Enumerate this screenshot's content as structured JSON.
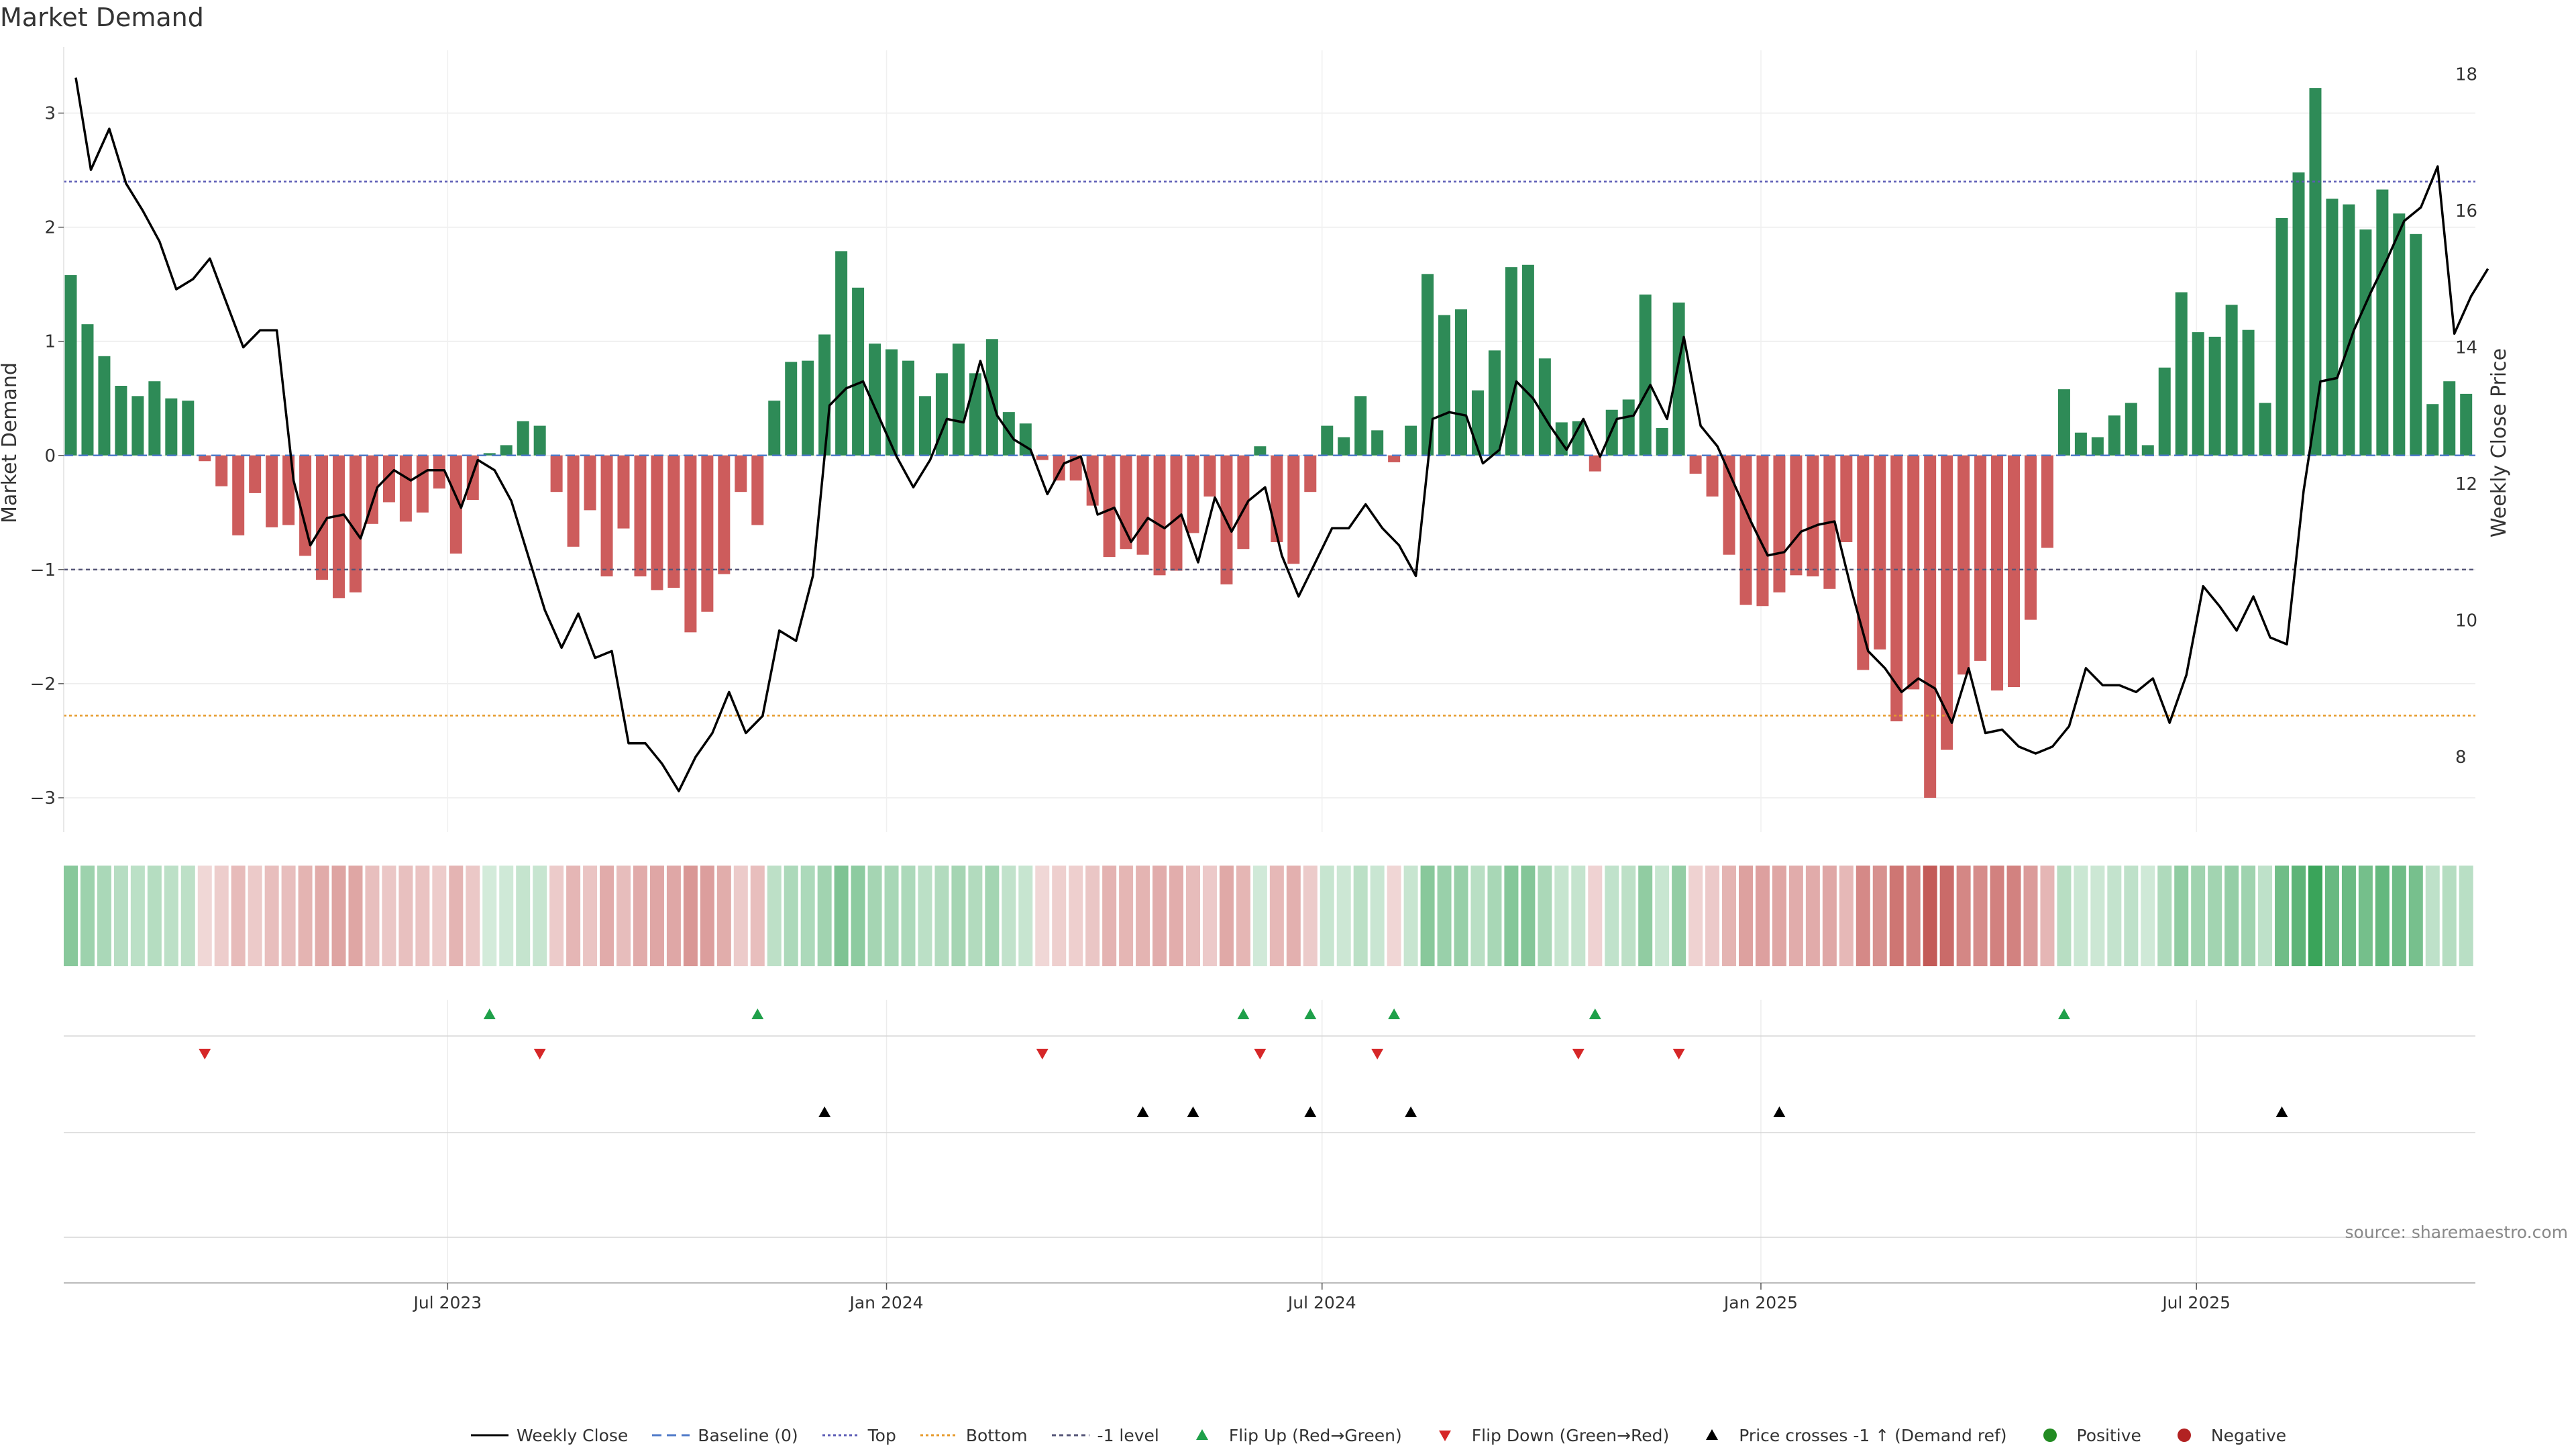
{
  "chart_data": {
    "type": "bar+line",
    "title": "Market Demand",
    "ylabel_left": "Market Demand",
    "ylabel_right": "Weekly Close Price",
    "ylim_left": [
      -3.3,
      3.55
    ],
    "yticks_left": [
      3,
      2,
      1,
      0,
      -1,
      -2,
      -3
    ],
    "ytick_labels_left": [
      "3",
      "2",
      "1",
      "0",
      "−1",
      "−2",
      "−3"
    ],
    "ylim_right": [
      6.9,
      18.35
    ],
    "yticks_right": [
      18,
      16,
      14,
      12,
      10,
      8
    ],
    "ytick_labels_right": [
      "18",
      "16",
      "14",
      "12",
      "10",
      "8"
    ],
    "x_labels": [
      {
        "label": "Jul 2023",
        "week": 22.5
      },
      {
        "label": "Jan 2024",
        "week": 48.7
      },
      {
        "label": "Jul 2024",
        "week": 74.7
      },
      {
        "label": "Jan 2025",
        "week": 100.9
      },
      {
        "label": "Jul 2025",
        "week": 126.9
      }
    ],
    "reference_lines": {
      "top": 2.4,
      "bottom": -2.28,
      "minus_one": -1,
      "baseline": 0
    },
    "demand": [
      1.58,
      1.15,
      0.87,
      0.61,
      0.52,
      0.65,
      0.5,
      0.48,
      -0.05,
      -0.27,
      -0.7,
      -0.33,
      -0.63,
      -0.61,
      -0.88,
      -1.09,
      -1.25,
      -1.2,
      -0.6,
      -0.41,
      -0.58,
      -0.5,
      -0.29,
      -0.86,
      -0.39,
      0.02,
      0.09,
      0.3,
      0.26,
      -0.32,
      -0.8,
      -0.48,
      -1.06,
      -0.64,
      -1.06,
      -1.18,
      -1.16,
      -1.55,
      -1.37,
      -1.04,
      -0.32,
      -0.61,
      0.48,
      0.82,
      0.83,
      1.06,
      1.79,
      1.47,
      0.98,
      0.93,
      0.83,
      0.52,
      0.72,
      0.98,
      0.72,
      1.02,
      0.38,
      0.28,
      -0.04,
      -0.22,
      -0.22,
      -0.44,
      -0.89,
      -0.82,
      -0.87,
      -1.05,
      -1.01,
      -0.68,
      -0.36,
      -1.13,
      -0.82,
      0.08,
      -0.76,
      -0.95,
      -0.32,
      0.26,
      0.16,
      0.52,
      0.22,
      -0.06,
      0.26,
      1.59,
      1.23,
      1.28,
      0.57,
      0.92,
      1.65,
      1.67,
      0.85,
      0.29,
      0.3,
      -0.14,
      0.4,
      0.49,
      1.41,
      0.24,
      1.34,
      -0.16,
      -0.36,
      -0.87,
      -1.31,
      -1.32,
      -1.2,
      -1.05,
      -1.06,
      -1.17,
      -0.76,
      -1.88,
      -1.7,
      -2.33,
      -2.05,
      -3.0,
      -2.58,
      -1.92,
      -1.8,
      -2.06,
      -2.03,
      -1.44,
      -0.81,
      0.58,
      0.2,
      0.16,
      0.35,
      0.46,
      0.09,
      0.77,
      1.43,
      1.08,
      1.04,
      1.32,
      1.1,
      0.46,
      2.08,
      2.48,
      3.22,
      2.25,
      2.2,
      1.98,
      2.33,
      2.12,
      1.94,
      0.45,
      0.65,
      0.54
    ],
    "weekly_close": [
      [
        0.3,
        17.95
      ],
      [
        1.2,
        16.6
      ],
      [
        2.3,
        17.2
      ],
      [
        3.3,
        16.4
      ],
      [
        4.3,
        16.0
      ],
      [
        5.3,
        15.55
      ],
      [
        6.3,
        14.85
      ],
      [
        7.3,
        15.0
      ],
      [
        8.3,
        15.3
      ],
      [
        9.3,
        14.65
      ],
      [
        10.3,
        14.0
      ],
      [
        11.3,
        14.25
      ],
      [
        12.3,
        14.25
      ],
      [
        13.3,
        12.05
      ],
      [
        14.3,
        11.1
      ],
      [
        15.3,
        11.5
      ],
      [
        16.3,
        11.55
      ],
      [
        17.3,
        11.2
      ],
      [
        18.3,
        11.95
      ],
      [
        19.3,
        12.2
      ],
      [
        20.3,
        12.05
      ],
      [
        21.3,
        12.2
      ],
      [
        22.3,
        12.2
      ],
      [
        23.3,
        11.65
      ],
      [
        24.3,
        12.35
      ],
      [
        25.3,
        12.2
      ],
      [
        26.3,
        11.75
      ],
      [
        27.3,
        10.95
      ],
      [
        28.3,
        10.15
      ],
      [
        29.3,
        9.6
      ],
      [
        30.3,
        10.1
      ],
      [
        31.3,
        9.45
      ],
      [
        32.3,
        9.55
      ],
      [
        33.3,
        8.2
      ],
      [
        34.3,
        8.2
      ],
      [
        35.3,
        7.9
      ],
      [
        36.3,
        7.5
      ],
      [
        37.3,
        8.0
      ],
      [
        38.3,
        8.35
      ],
      [
        39.3,
        8.95
      ],
      [
        40.3,
        8.35
      ],
      [
        41.3,
        8.6
      ],
      [
        42.3,
        9.85
      ],
      [
        43.3,
        9.7
      ],
      [
        44.3,
        10.65
      ],
      [
        45.3,
        13.15
      ],
      [
        46.3,
        13.4
      ],
      [
        47.3,
        13.5
      ],
      [
        48.3,
        12.95
      ],
      [
        49.3,
        12.4
      ],
      [
        50.3,
        11.95
      ],
      [
        51.3,
        12.35
      ],
      [
        52.3,
        12.95
      ],
      [
        53.3,
        12.9
      ],
      [
        54.3,
        13.8
      ],
      [
        55.3,
        13.0
      ],
      [
        56.3,
        12.65
      ],
      [
        57.3,
        12.5
      ],
      [
        58.3,
        11.85
      ],
      [
        59.3,
        12.3
      ],
      [
        60.3,
        12.4
      ],
      [
        61.3,
        11.55
      ],
      [
        62.3,
        11.65
      ],
      [
        63.3,
        11.15
      ],
      [
        64.3,
        11.5
      ],
      [
        65.3,
        11.35
      ],
      [
        66.3,
        11.55
      ],
      [
        67.3,
        10.85
      ],
      [
        68.3,
        11.8
      ],
      [
        69.3,
        11.3
      ],
      [
        70.3,
        11.75
      ],
      [
        71.3,
        11.95
      ],
      [
        72.3,
        10.95
      ],
      [
        73.3,
        10.35
      ],
      [
        74.3,
        10.85
      ],
      [
        75.3,
        11.35
      ],
      [
        76.3,
        11.35
      ],
      [
        77.3,
        11.7
      ],
      [
        78.3,
        11.35
      ],
      [
        79.3,
        11.1
      ],
      [
        80.3,
        10.65
      ],
      [
        81.3,
        12.95
      ],
      [
        82.3,
        13.05
      ],
      [
        83.3,
        13.0
      ],
      [
        84.3,
        12.3
      ],
      [
        85.3,
        12.5
      ],
      [
        86.3,
        13.5
      ],
      [
        87.3,
        13.25
      ],
      [
        88.3,
        12.85
      ],
      [
        89.3,
        12.5
      ],
      [
        90.3,
        12.95
      ],
      [
        91.3,
        12.4
      ],
      [
        92.3,
        12.95
      ],
      [
        93.3,
        13.0
      ],
      [
        94.3,
        13.45
      ],
      [
        95.3,
        12.95
      ],
      [
        96.3,
        14.15
      ],
      [
        97.3,
        12.85
      ],
      [
        98.3,
        12.55
      ],
      [
        99.3,
        12.0
      ],
      [
        100.3,
        11.45
      ],
      [
        101.3,
        10.95
      ],
      [
        102.3,
        11.0
      ],
      [
        103.3,
        11.3
      ],
      [
        104.3,
        11.4
      ],
      [
        105.3,
        11.45
      ],
      [
        106.3,
        10.45
      ],
      [
        107.3,
        9.55
      ],
      [
        108.3,
        9.3
      ],
      [
        109.3,
        8.95
      ],
      [
        110.3,
        9.15
      ],
      [
        111.3,
        9.0
      ],
      [
        112.3,
        8.5
      ],
      [
        113.3,
        9.3
      ],
      [
        114.3,
        8.35
      ],
      [
        115.3,
        8.4
      ],
      [
        116.3,
        8.15
      ],
      [
        117.3,
        8.05
      ],
      [
        118.3,
        8.15
      ],
      [
        119.3,
        8.45
      ],
      [
        120.3,
        9.3
      ],
      [
        121.3,
        9.05
      ],
      [
        122.3,
        9.05
      ],
      [
        123.3,
        8.95
      ],
      [
        124.3,
        9.15
      ],
      [
        125.3,
        8.5
      ],
      [
        126.3,
        9.2
      ],
      [
        127.3,
        10.5
      ],
      [
        128.3,
        10.2
      ],
      [
        129.3,
        9.85
      ],
      [
        130.3,
        10.35
      ],
      [
        131.3,
        9.75
      ],
      [
        132.3,
        9.65
      ],
      [
        133.3,
        11.9
      ],
      [
        134.3,
        13.5
      ],
      [
        135.3,
        13.55
      ],
      [
        136.3,
        14.25
      ],
      [
        137.3,
        14.8
      ],
      [
        138.3,
        15.3
      ],
      [
        139.3,
        15.85
      ],
      [
        140.3,
        16.05
      ],
      [
        141.3,
        16.65
      ],
      [
        142.3,
        14.2
      ],
      [
        143.3,
        14.75
      ],
      [
        144.3,
        15.15
      ]
    ],
    "heat_values": [
      1.58,
      1.15,
      0.87,
      0.61,
      0.52,
      0.65,
      0.5,
      0.48,
      -0.05,
      -0.27,
      -0.7,
      -0.33,
      -0.63,
      -0.61,
      -0.88,
      -1.09,
      -1.25,
      -1.2,
      -0.6,
      -0.41,
      -0.58,
      -0.5,
      -0.29,
      -0.86,
      -0.39,
      0.02,
      0.09,
      0.3,
      0.26,
      -0.32,
      -0.8,
      -0.48,
      -1.06,
      -0.64,
      -1.06,
      -1.18,
      -1.16,
      -1.55,
      -1.37,
      -1.04,
      -0.32,
      -0.61,
      0.48,
      0.82,
      0.83,
      1.06,
      1.79,
      1.47,
      0.98,
      0.93,
      0.83,
      0.52,
      0.72,
      0.98,
      0.72,
      1.02,
      0.38,
      0.28,
      -0.04,
      -0.22,
      -0.22,
      -0.44,
      -0.89,
      -0.82,
      -0.87,
      -1.05,
      -1.01,
      -0.68,
      -0.36,
      -1.13,
      -0.82,
      0.08,
      -0.76,
      -0.95,
      -0.32,
      0.26,
      0.16,
      0.52,
      0.22,
      -0.06,
      0.26,
      1.59,
      1.23,
      1.28,
      0.57,
      0.92,
      1.65,
      1.67,
      0.85,
      0.29,
      0.3,
      -0.14,
      0.4,
      0.49,
      1.41,
      0.24,
      1.34,
      -0.16,
      -0.36,
      -0.87,
      -1.31,
      -1.32,
      -1.2,
      -1.05,
      -1.06,
      -1.17,
      -0.76,
      -1.88,
      -1.7,
      -2.33,
      -2.05,
      -3.0,
      -2.58,
      -1.92,
      -1.8,
      -2.06,
      -2.03,
      -1.44,
      -0.81,
      0.58,
      0.2,
      0.16,
      0.35,
      0.46,
      0.09,
      0.77,
      1.43,
      1.08,
      1.04,
      1.32,
      1.1,
      0.46,
      2.08,
      2.48,
      3.22,
      2.25,
      2.2,
      1.98,
      2.33,
      2.12,
      1.94,
      0.45,
      0.65,
      0.54
    ],
    "flip_up_weeks": [
      25,
      41,
      70,
      74,
      79,
      91,
      119
    ],
    "flip_down_weeks": [
      8,
      28,
      58,
      71,
      78,
      90,
      96
    ],
    "price_cross_weeks": [
      45,
      64,
      67,
      74,
      80,
      102,
      132
    ],
    "legend": [
      "Weekly Close",
      "Baseline (0)",
      "Top",
      "Bottom",
      "-1 level",
      "Flip Up (Red→Green)",
      "Flip Down (Green→Red)",
      "Price crosses -1 ↑ (Demand ref)",
      "Positive",
      "Negative"
    ],
    "source": "source: sharemaestro.com"
  },
  "colors": {
    "positive": "#2e8b57",
    "negative": "#cd5c5c",
    "price_line": "#000000",
    "top_line": "#5b5bb5",
    "bottom_line": "#e69a2a",
    "minus_one_line": "#555577",
    "baseline_line": "#4f7ac8",
    "flip_up": "#1fa04a",
    "flip_down": "#d62728",
    "cross": "#000000",
    "positive_legend": "#228b22",
    "negative_legend": "#b22222"
  }
}
